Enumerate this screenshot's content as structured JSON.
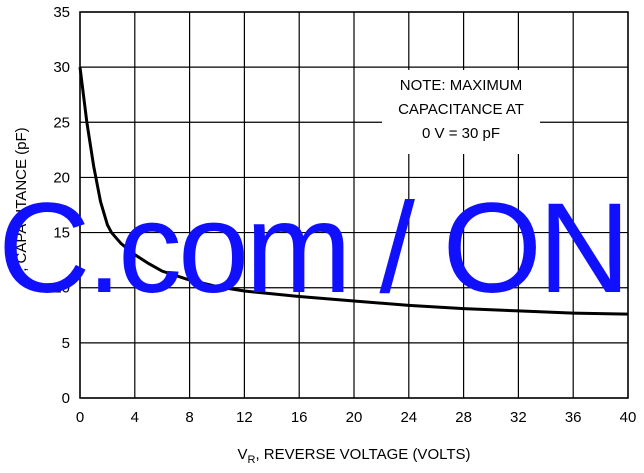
{
  "chart_data": {
    "type": "line",
    "x_label": {
      "main": "V",
      "sub": "R",
      "rest": ", REVERSE VOLTAGE (VOLTS)"
    },
    "y_label": "C, CAPACITANCE (pF)",
    "annotation": [
      "NOTE: MAXIMUM",
      "CAPACITANCE AT",
      "0 V = 30 pF"
    ],
    "watermark": "C.com / ON",
    "x": [
      0,
      0.5,
      1,
      1.5,
      2,
      2.3,
      3,
      4,
      5,
      6,
      8,
      10,
      12,
      16,
      20,
      24,
      28,
      32,
      36,
      40
    ],
    "series": [
      {
        "color": "#000000",
        "values": [
          30,
          25,
          21,
          17.8,
          15.7,
          15,
          14,
          13,
          12.2,
          11.5,
          10.7,
          10.1,
          9.7,
          9.2,
          8.8,
          8.4,
          8.1,
          7.9,
          7.7,
          7.6
        ]
      }
    ],
    "xlim": [
      0,
      40
    ],
    "xticks": [
      0,
      4,
      8,
      12,
      16,
      20,
      24,
      28,
      32,
      36,
      40
    ],
    "ylim": [
      0,
      35
    ],
    "yticks": [
      0,
      5,
      10,
      15,
      20,
      25,
      30,
      35
    ],
    "grid": true
  }
}
